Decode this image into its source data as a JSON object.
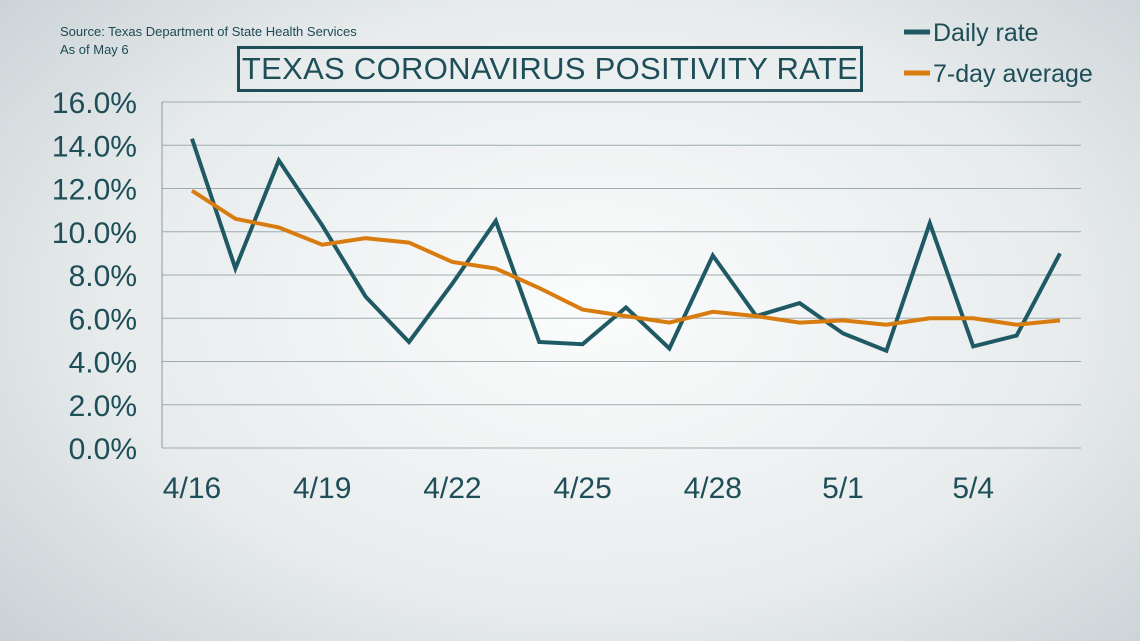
{
  "header": {
    "source_line": "Source: Texas Department of State Health Services",
    "date_line": "As of May 6",
    "title": "TEXAS CORONAVIRUS POSITIVITY RATE"
  },
  "chart_data": {
    "type": "line",
    "title": "TEXAS CORONAVIRUS POSITIVITY RATE",
    "xlabel": "",
    "ylabel": "",
    "x": [
      "4/16",
      "4/17",
      "4/18",
      "4/19",
      "4/20",
      "4/21",
      "4/22",
      "4/23",
      "4/24",
      "4/25",
      "4/26",
      "4/27",
      "4/28",
      "4/29",
      "4/30",
      "5/1",
      "5/2",
      "5/3",
      "5/4",
      "5/5",
      "5/6"
    ],
    "x_tick_labels": [
      "4/16",
      "4/19",
      "4/22",
      "4/25",
      "4/28",
      "5/1",
      "5/4"
    ],
    "x_tick_indices": [
      0,
      3,
      6,
      9,
      12,
      15,
      18
    ],
    "y_ticks": [
      "16.0%",
      "14.0%",
      "12.0%",
      "10.0%",
      "8.0%",
      "6.0%",
      "4.0%",
      "2.0%",
      "0.0%"
    ],
    "y_tick_values": [
      16,
      14,
      12,
      10,
      8,
      6,
      4,
      2,
      0
    ],
    "ylim": [
      0,
      16
    ],
    "grid": true,
    "legend_position": "top-right",
    "series": [
      {
        "name": "Daily rate",
        "color": "#1f5a64",
        "values": [
          14.3,
          8.3,
          13.3,
          10.3,
          7.0,
          4.9,
          7.6,
          10.5,
          4.9,
          4.8,
          6.5,
          4.6,
          8.9,
          6.1,
          6.7,
          5.3,
          4.5,
          10.4,
          4.7,
          5.2,
          9.0
        ]
      },
      {
        "name": "7-day average",
        "color": "#d97c0f",
        "values": [
          11.9,
          10.6,
          10.2,
          9.4,
          9.7,
          9.5,
          8.6,
          8.3,
          7.4,
          6.4,
          6.1,
          5.8,
          6.3,
          6.1,
          5.8,
          5.9,
          5.7,
          6.0,
          6.0,
          5.7,
          5.9
        ]
      }
    ]
  }
}
